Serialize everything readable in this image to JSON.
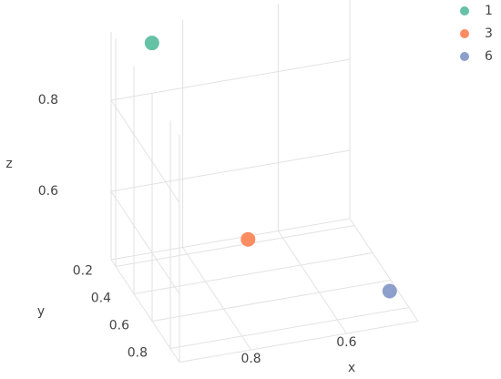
{
  "chart_data": {
    "type": "scatter3d",
    "x_label": "x",
    "y_label": "y",
    "z_label": "z",
    "xlim": [
      0.45,
      0.95
    ],
    "ylim": [
      0.15,
      0.9
    ],
    "zlim": [
      0.45,
      0.95
    ],
    "xticks": [
      0.6,
      0.8
    ],
    "yticks": [
      0.2,
      0.4,
      0.6,
      0.8
    ],
    "zticks": [
      0.6,
      0.8
    ],
    "grid": true,
    "legend": "top-right",
    "series": [
      {
        "name": "1",
        "color": "#66c2a5",
        "x": [
          0.874
        ],
        "y": [
          0.2
        ],
        "z": [
          0.927
        ]
      },
      {
        "name": "3",
        "color": "#fc8d62",
        "x": [
          0.73
        ],
        "y": [
          0.5
        ],
        "z": [
          0.56
        ]
      },
      {
        "name": "6",
        "color": "#8da0cb",
        "x": [
          0.5
        ],
        "y": [
          0.85
        ],
        "z": [
          0.51
        ]
      }
    ]
  }
}
